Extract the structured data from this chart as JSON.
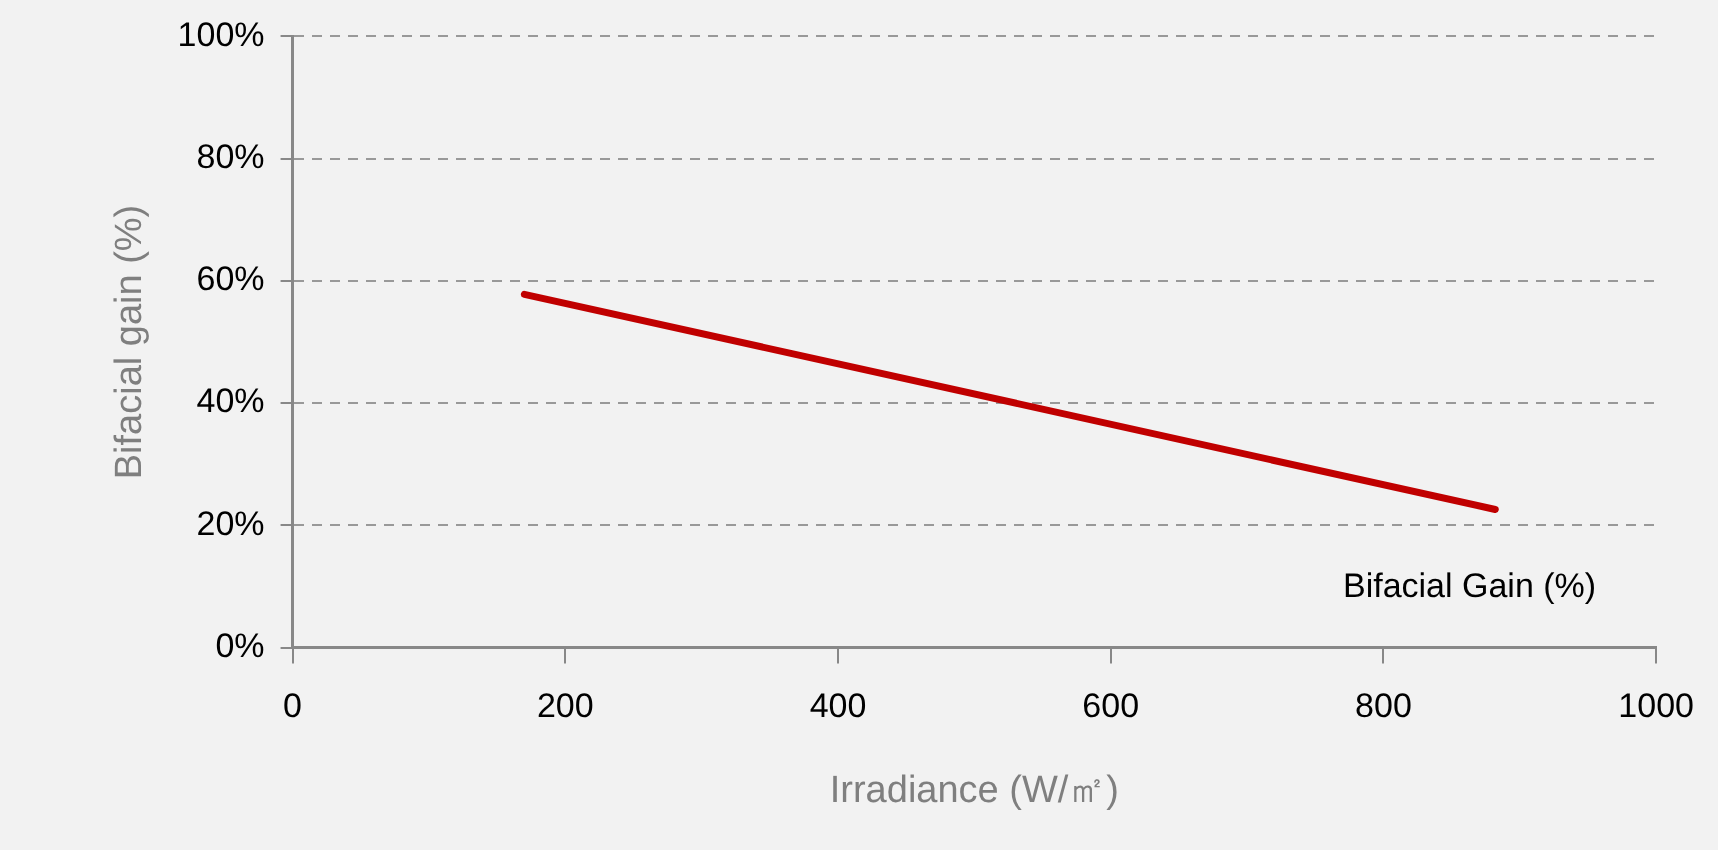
{
  "chart_data": {
    "type": "line",
    "xlabel": "Irradiance (W/㎡)",
    "ylabel": "Bifacial gain (%)",
    "xlim": [
      0,
      1000
    ],
    "xticks": [
      0,
      200,
      400,
      600,
      800,
      1000
    ],
    "ylim": [
      0,
      100
    ],
    "yticks": [
      {
        "value": 0,
        "label": "0%"
      },
      {
        "value": 20,
        "label": "20%"
      },
      {
        "value": 40,
        "label": "40%"
      },
      {
        "value": 60,
        "label": "60%"
      },
      {
        "value": 80,
        "label": "80%"
      },
      {
        "value": 100,
        "label": "100%"
      }
    ],
    "grid": "y",
    "legend": "bottom right",
    "marker": "none",
    "line_style": "solid",
    "series": [
      {
        "name": "Bifacial Gain (%)",
        "color": "#c00000",
        "x": [
          170,
          882
        ],
        "values": [
          57.8,
          22.6
        ]
      }
    ]
  }
}
